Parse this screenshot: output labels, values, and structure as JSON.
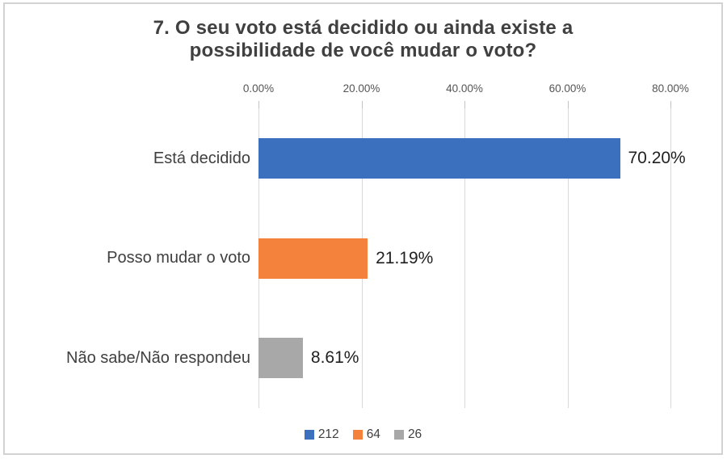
{
  "chart_data": {
    "type": "bar",
    "orientation": "horizontal",
    "title": "7. O seu voto está decidido ou ainda existe a possibilidade de você mudar o voto?",
    "categories": [
      "Está decidido",
      "Posso mudar o voto",
      "Não sabe/Não respondeu"
    ],
    "values": [
      70.2,
      21.19,
      8.61
    ],
    "value_labels": [
      "70.20%",
      "21.19%",
      "8.61%"
    ],
    "counts": [
      212,
      64,
      26
    ],
    "x_ticks": [
      "0.00%",
      "20.00%",
      "40.00%",
      "60.00%",
      "80.00%"
    ],
    "xlim": [
      0,
      80
    ],
    "axis_position": "top",
    "grid": true,
    "legend_position": "bottom",
    "legend_labels": [
      "212",
      "64",
      "26"
    ],
    "bar_colors": [
      "#3a70be",
      "#f5823c",
      "#a8a8a8"
    ],
    "gridline_color": "#d9d9d9"
  }
}
